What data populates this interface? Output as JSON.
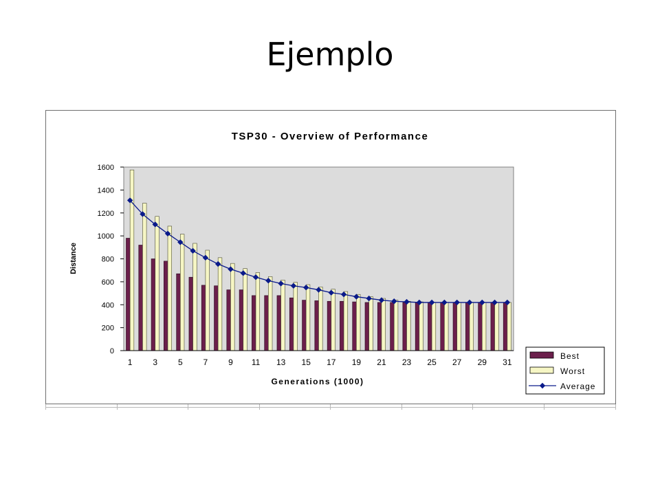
{
  "slide": {
    "title": "Ejemplo"
  },
  "chart_data": {
    "type": "bar",
    "title": "TSP30 - Overview of Performance",
    "xlabel": "Generations (1000)",
    "ylabel": "Distance",
    "ylim": [
      0,
      1600
    ],
    "yticks": [
      0,
      200,
      400,
      600,
      800,
      1000,
      1200,
      1400,
      1600
    ],
    "categories": [
      1,
      2,
      3,
      4,
      5,
      6,
      7,
      8,
      9,
      10,
      11,
      12,
      13,
      14,
      15,
      16,
      17,
      18,
      19,
      20,
      21,
      22,
      23,
      24,
      25,
      26,
      27,
      28,
      29,
      30,
      31
    ],
    "x_tick_labels": [
      "1",
      "",
      "3",
      "",
      "5",
      "",
      "7",
      "",
      "9",
      "",
      "11",
      "",
      "13",
      "",
      "15",
      "",
      "17",
      "",
      "19",
      "",
      "21",
      "",
      "23",
      "",
      "25",
      "",
      "27",
      "",
      "29",
      "",
      "31"
    ],
    "grid": false,
    "legend_position": "bottom-right",
    "plot_background": "#dcdcdc",
    "series": [
      {
        "name": "Best",
        "kind": "bar",
        "color": "#6b1f4b",
        "values": [
          980,
          920,
          800,
          780,
          670,
          640,
          570,
          565,
          530,
          530,
          480,
          480,
          480,
          460,
          440,
          435,
          430,
          430,
          425,
          420,
          420,
          420,
          420,
          420,
          420,
          420,
          420,
          420,
          420,
          420,
          420
        ]
      },
      {
        "name": "Worst",
        "kind": "bar",
        "color": "#f6f6c4",
        "values": [
          1575,
          1285,
          1170,
          1085,
          1015,
          935,
          875,
          810,
          760,
          715,
          680,
          645,
          615,
          595,
          575,
          555,
          535,
          515,
          490,
          470,
          455,
          440,
          430,
          425,
          420,
          420,
          420,
          420,
          420,
          420,
          420
        ]
      },
      {
        "name": "Average",
        "kind": "line",
        "color": "#0a1a8a",
        "values": [
          1310,
          1190,
          1100,
          1020,
          945,
          870,
          810,
          755,
          710,
          675,
          640,
          610,
          585,
          565,
          550,
          530,
          505,
          490,
          470,
          455,
          440,
          430,
          425,
          420,
          420,
          420,
          420,
          420,
          420,
          420,
          420
        ]
      }
    ]
  }
}
